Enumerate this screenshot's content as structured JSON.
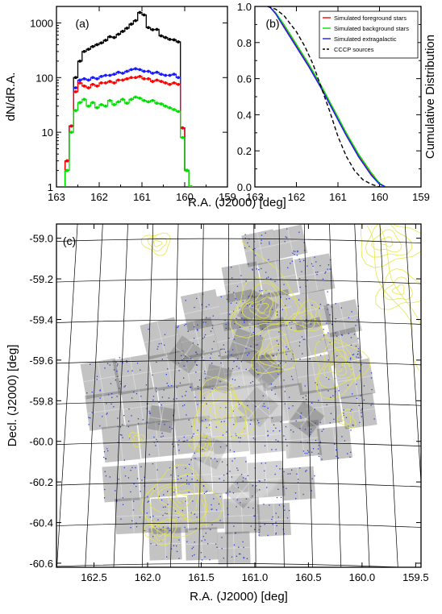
{
  "chart_data": [
    {
      "type": "line",
      "panel_label": "(a)",
      "ylabel": "dN/dR.A.",
      "xlabel": "R.A. (J2000) [deg]",
      "xlim": [
        163,
        159
      ],
      "ylim": [
        1,
        2000
      ],
      "y_scale": "log",
      "x_ticks": [
        "163",
        "162",
        "161",
        "160",
        "159"
      ],
      "x_tick_values": [
        163,
        162,
        161,
        160,
        159
      ],
      "y_ticks": [
        "1",
        "10",
        "100",
        "1000"
      ],
      "y_tick_values": [
        1,
        10,
        100,
        1000
      ],
      "x": [
        162.75,
        162.65,
        162.55,
        162.45,
        162.35,
        162.25,
        162.15,
        162.05,
        161.95,
        161.85,
        161.75,
        161.65,
        161.55,
        161.45,
        161.35,
        161.25,
        161.15,
        161.05,
        160.95,
        160.85,
        160.75,
        160.65,
        160.55,
        160.45,
        160.35,
        160.25,
        160.15,
        160.05,
        159.95,
        159.85
      ],
      "series": [
        {
          "color": "#000000",
          "values": [
            3,
            13,
            100,
            200,
            300,
            330,
            370,
            400,
            430,
            480,
            560,
            540,
            620,
            700,
            800,
            950,
            1100,
            1550,
            1400,
            820,
            750,
            760,
            580,
            540,
            500,
            490,
            450,
            12,
            2,
            1
          ]
        },
        {
          "color": "#1a1aff",
          "values": [
            3,
            13,
            65,
            90,
            95,
            90,
            100,
            95,
            105,
            110,
            110,
            115,
            125,
            120,
            130,
            140,
            145,
            140,
            130,
            130,
            120,
            125,
            115,
            110,
            110,
            115,
            100,
            12,
            2,
            1
          ]
        },
        {
          "color": "#ff0000",
          "values": [
            3,
            13,
            55,
            80,
            70,
            65,
            75,
            70,
            80,
            80,
            85,
            80,
            90,
            90,
            95,
            100,
            100,
            105,
            95,
            95,
            85,
            90,
            85,
            80,
            75,
            80,
            75,
            12,
            2,
            1
          ]
        },
        {
          "color": "#00e000",
          "values": [
            2,
            10,
            25,
            35,
            40,
            30,
            35,
            28,
            32,
            30,
            38,
            32,
            36,
            40,
            34,
            40,
            44,
            42,
            38,
            36,
            38,
            34,
            33,
            30,
            28,
            26,
            24,
            8,
            2,
            1
          ]
        }
      ]
    },
    {
      "type": "line",
      "panel_label": "(b)",
      "ylabel": "Cumulative Distribution",
      "xlabel": "R.A. (J2000) [deg]",
      "xlim": [
        163,
        159
      ],
      "ylim": [
        0,
        1
      ],
      "x_ticks": [
        "163",
        "162",
        "161",
        "160",
        "159"
      ],
      "x_tick_values": [
        163,
        162,
        161,
        160,
        159
      ],
      "y_ticks": [
        "0.0",
        "0.2",
        "0.4",
        "0.6",
        "0.8",
        "1.0"
      ],
      "y_tick_values": [
        0,
        0.2,
        0.4,
        0.6,
        0.8,
        1.0
      ],
      "legend_position": "top-right",
      "series": [
        {
          "name": "Simulated foreground stars",
          "color": "#ff0000",
          "dash": false,
          "x": [
            162.65,
            162.5,
            162.3,
            162.0,
            161.7,
            161.4,
            161.1,
            160.8,
            160.5,
            160.2,
            160.0,
            159.85
          ],
          "y": [
            1.0,
            0.96,
            0.89,
            0.78,
            0.67,
            0.55,
            0.42,
            0.29,
            0.17,
            0.07,
            0.02,
            0.0
          ]
        },
        {
          "name": "Simulated background stars",
          "color": "#00e000",
          "dash": false,
          "x": [
            162.65,
            162.5,
            162.3,
            162.0,
            161.7,
            161.4,
            161.1,
            160.8,
            160.5,
            160.2,
            160.0,
            159.85
          ],
          "y": [
            1.0,
            0.965,
            0.9,
            0.79,
            0.68,
            0.56,
            0.43,
            0.3,
            0.18,
            0.08,
            0.02,
            0.0
          ]
        },
        {
          "name": "Simulated extragalactic",
          "color": "#1a1aff",
          "dash": false,
          "x": [
            162.65,
            162.5,
            162.3,
            162.0,
            161.7,
            161.4,
            161.1,
            160.8,
            160.5,
            160.2,
            160.0,
            159.85
          ],
          "y": [
            1.0,
            0.96,
            0.885,
            0.775,
            0.665,
            0.545,
            0.415,
            0.285,
            0.165,
            0.065,
            0.015,
            0.0
          ]
        },
        {
          "name": "CCCP sources",
          "color": "#000000",
          "dash": true,
          "x": [
            162.7,
            162.5,
            162.3,
            162.0,
            161.8,
            161.6,
            161.4,
            161.2,
            161.0,
            160.8,
            160.6,
            160.4,
            160.2,
            160.0,
            159.9
          ],
          "y": [
            1.0,
            0.985,
            0.95,
            0.86,
            0.78,
            0.68,
            0.55,
            0.42,
            0.28,
            0.17,
            0.09,
            0.04,
            0.015,
            0.0,
            0.0
          ]
        }
      ]
    },
    {
      "type": "scatter",
      "panel_label": "(c)",
      "xlabel": "R.A. (J2000) [deg]",
      "ylabel": "Decl. (J2000) [deg]",
      "xlim": [
        162.85,
        159.45
      ],
      "ylim": [
        -60.62,
        -58.93
      ],
      "x_ticks": [
        "162.5",
        "162.0",
        "161.5",
        "161.0",
        "160.5",
        "160.0",
        "159.5"
      ],
      "x_tick_values": [
        162.5,
        162.0,
        161.5,
        161.0,
        160.5,
        160.0,
        159.5
      ],
      "y_ticks": [
        "-59.0",
        "-59.2",
        "-59.4",
        "-59.6",
        "-59.8",
        "-60.0",
        "-60.2",
        "-60.4",
        "-60.6"
      ],
      "y_tick_values": [
        -59.0,
        -59.2,
        -59.4,
        -59.6,
        -59.8,
        -60.0,
        -60.2,
        -60.4,
        -60.6
      ],
      "point_color": "#2a3bd6",
      "contour_color": "#e6e64d",
      "grid": true
    }
  ]
}
